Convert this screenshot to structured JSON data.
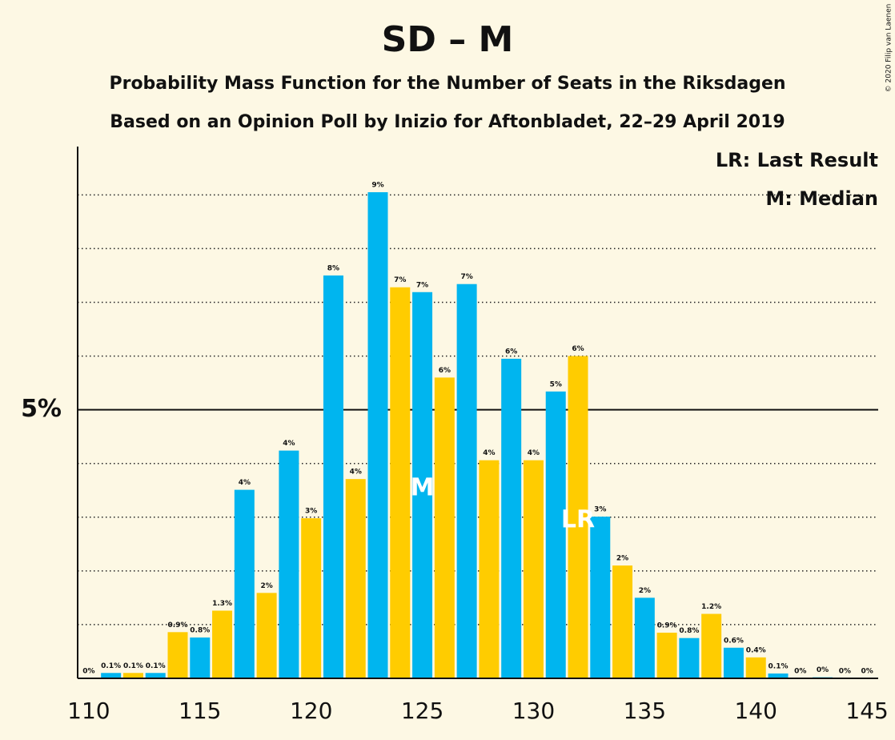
{
  "chart_data": {
    "type": "bar",
    "title": "SD – M",
    "subtitle": "Probability Mass Function for the Number of Seats in the Riksdagen",
    "subtitle2": "Based on an Opinion Poll by Inizio for Aftonbladet, 22–29 April 2019",
    "copyright": "© 2020 Filip van Laenen",
    "x": [
      110,
      111,
      112,
      113,
      114,
      115,
      116,
      117,
      118,
      119,
      120,
      121,
      122,
      123,
      124,
      125,
      126,
      127,
      128,
      129,
      130,
      131,
      132,
      133,
      134,
      135,
      136,
      137,
      138,
      139,
      140,
      141,
      142,
      143,
      144,
      145
    ],
    "values": [
      0,
      0.1,
      0.1,
      0.1,
      0.86,
      0.76,
      1.26,
      3.51,
      1.59,
      4.24,
      2.98,
      7.5,
      3.71,
      9.05,
      7.28,
      7.19,
      5.6,
      7.34,
      4.06,
      5.95,
      4.06,
      5.34,
      6.0,
      3.01,
      2.1,
      1.5,
      0.85,
      0.75,
      1.2,
      0.57,
      0.39,
      0.09,
      0,
      0.02,
      0,
      0
    ],
    "value_labels": [
      "0%",
      "0.1%",
      "0.1%",
      "0.1%",
      "0.9%",
      "0.8%",
      "1.3%",
      "4%",
      "2%",
      "4%",
      "3%",
      "8%",
      "4%",
      "9%",
      "7%",
      "7%",
      "6%",
      "7%",
      "4%",
      "6%",
      "4%",
      "5%",
      "6%",
      "3%",
      "2%",
      "2%",
      "0.9%",
      "0.8%",
      "1.2%",
      "0.6%",
      "0.4%",
      "0.1%",
      "0%",
      "0%",
      "0%",
      "0%"
    ],
    "colors": {
      "odd": "#00b5ef",
      "even": "#ffcc00"
    },
    "xlim": [
      109.5,
      145.5
    ],
    "xticks": [
      110,
      115,
      120,
      125,
      130,
      135,
      140,
      145
    ],
    "ylim": [
      0,
      9.9
    ],
    "yticks": [
      {
        "value": 5,
        "label": "5%"
      }
    ],
    "grid_lines": [
      1,
      2,
      3,
      4,
      6,
      7,
      8,
      9
    ],
    "annotations": [
      {
        "x": 125,
        "text": "M"
      },
      {
        "x": 132,
        "text": "LR"
      }
    ],
    "legend": [
      "LR: Last Result",
      "M: Median"
    ]
  }
}
